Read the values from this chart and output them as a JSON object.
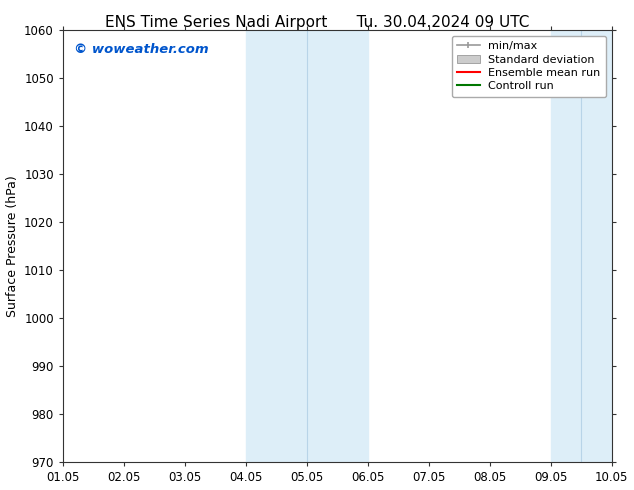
{
  "title_left": "ENS Time Series Nadi Airport",
  "title_right": "Tu. 30.04.2024 09 UTC",
  "ylabel": "Surface Pressure (hPa)",
  "ylim": [
    970,
    1060
  ],
  "yticks": [
    970,
    980,
    990,
    1000,
    1010,
    1020,
    1030,
    1040,
    1050,
    1060
  ],
  "xtick_labels": [
    "01.05",
    "02.05",
    "03.05",
    "04.05",
    "05.05",
    "06.05",
    "07.05",
    "08.05",
    "09.05",
    "10.05"
  ],
  "n_xticks": 10,
  "shaded_regions": [
    {
      "xmin": 3.5,
      "xmax": 4.0,
      "color": "#ddeef8"
    },
    {
      "xmin": 4.0,
      "xmax": 5.0,
      "color": "#ddeef8"
    },
    {
      "xmin": 8.0,
      "xmax": 8.5,
      "color": "#ddeef8"
    },
    {
      "xmin": 8.5,
      "xmax": 9.0,
      "color": "#ddeef8"
    }
  ],
  "watermark": "© woweather.com",
  "watermark_color": "#0055cc",
  "background_color": "#ffffff",
  "legend_labels": [
    "min/max",
    "Standard deviation",
    "Ensemble mean run",
    "Controll run"
  ],
  "legend_line_colors": [
    "#999999",
    "#bbbbbb",
    "#ff0000",
    "#007700"
  ],
  "title_fontsize": 11,
  "axis_label_fontsize": 9,
  "tick_fontsize": 8.5,
  "legend_fontsize": 8
}
